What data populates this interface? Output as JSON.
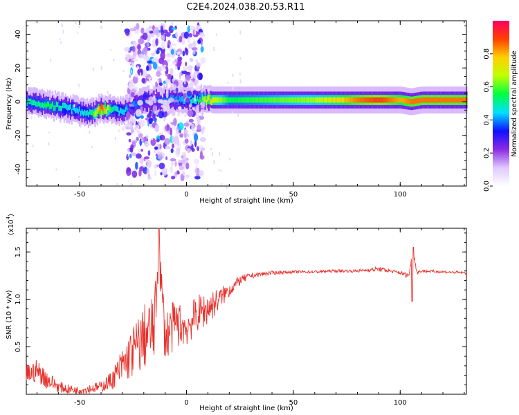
{
  "title": "C2E4.2024.038.20.53.R11",
  "chart_data": [
    {
      "type": "heatmap",
      "name": "spectrogram",
      "xlabel": "Height of straight line (km)",
      "ylabel": "Frequency (Hz)",
      "xlim": [
        -75,
        131
      ],
      "ylim": [
        -50,
        48
      ],
      "x_ticks": [
        -50,
        0,
        50,
        100
      ],
      "y_ticks": [
        -40,
        -20,
        0,
        20,
        40
      ],
      "colorbar": {
        "label": "Normalized spectral amplitude",
        "range": [
          0.0,
          1.0
        ],
        "ticks": [
          0.0,
          0.2,
          0.4,
          0.6,
          0.8
        ],
        "colors": [
          "#ffffff",
          "#e0c8ff",
          "#8a2be2",
          "#1010ff",
          "#00e0ff",
          "#00ff40",
          "#c0ff00",
          "#ffd000",
          "#ff4000",
          "#ff0060"
        ]
      },
      "ridge": {
        "x": [
          -75,
          -70,
          -65,
          -60,
          -55,
          -50,
          -45,
          -40,
          -35,
          -30,
          -25,
          -20,
          -15,
          -10,
          -5,
          0,
          5,
          10,
          20,
          40,
          60,
          80,
          90,
          95,
          100,
          105,
          110,
          120,
          131
        ],
        "freq": [
          0,
          -1,
          -2,
          -3,
          -4,
          -6,
          -7,
          -4,
          -5,
          -6,
          -2,
          0,
          1,
          1,
          1,
          1,
          1,
          1,
          1,
          1,
          1,
          1,
          1,
          1,
          1,
          0,
          1,
          1,
          1
        ],
        "amplitude": [
          0.5,
          0.5,
          0.55,
          0.5,
          0.45,
          0.45,
          0.5,
          0.9,
          0.5,
          0.45,
          0.4,
          0.35,
          0.35,
          0.4,
          0.4,
          0.45,
          0.5,
          0.75,
          0.55,
          0.6,
          0.65,
          0.85,
          0.9,
          0.85,
          0.8,
          0.85,
          0.85,
          0.85,
          0.85
        ]
      },
      "scatter_region": {
        "x": [
          -28,
          8
        ],
        "freq": [
          -45,
          45
        ]
      }
    },
    {
      "type": "line",
      "name": "snr",
      "color": "#e8302a",
      "xlabel": "Height of straight line (km)",
      "ylabel": "SNR (10 * v/v)",
      "y_scale_label": "(x10",
      "y_scale_exp": "4",
      "y_scale_close": ")",
      "xlim": [
        -75,
        131
      ],
      "ylim": [
        0,
        1.75
      ],
      "x_ticks": [
        -50,
        0,
        50,
        100
      ],
      "y_ticks": [
        0.5,
        1.0,
        1.5
      ],
      "y_tick_labels": [
        "0.5",
        "1.0",
        "1.5"
      ],
      "x": [
        -75,
        -70,
        -65,
        -60,
        -55,
        -50,
        -45,
        -40,
        -35,
        -30,
        -25,
        -20,
        -15,
        -13,
        -10,
        -5,
        0,
        5,
        10,
        15,
        20,
        25,
        30,
        40,
        50,
        60,
        70,
        80,
        90,
        95,
        100,
        104,
        106,
        108,
        110,
        120,
        131
      ],
      "y": [
        0.2,
        0.25,
        0.15,
        0.08,
        0.05,
        0.04,
        0.06,
        0.08,
        0.15,
        0.3,
        0.45,
        0.6,
        0.7,
        1.5,
        0.6,
        0.75,
        0.7,
        0.85,
        0.9,
        1.0,
        1.1,
        1.2,
        1.25,
        1.28,
        1.29,
        1.29,
        1.3,
        1.3,
        1.32,
        1.3,
        1.28,
        1.25,
        1.5,
        1.28,
        1.3,
        1.29,
        1.28
      ],
      "noise": [
        0.12,
        0.12,
        0.1,
        0.06,
        0.05,
        0.04,
        0.05,
        0.06,
        0.1,
        0.2,
        0.28,
        0.35,
        0.35,
        0.2,
        0.3,
        0.25,
        0.2,
        0.2,
        0.18,
        0.12,
        0.08,
        0.05,
        0.03,
        0.02,
        0.015,
        0.015,
        0.015,
        0.015,
        0.025,
        0.02,
        0.02,
        0.03,
        0.05,
        0.02,
        0.015,
        0.015,
        0.015
      ]
    }
  ]
}
